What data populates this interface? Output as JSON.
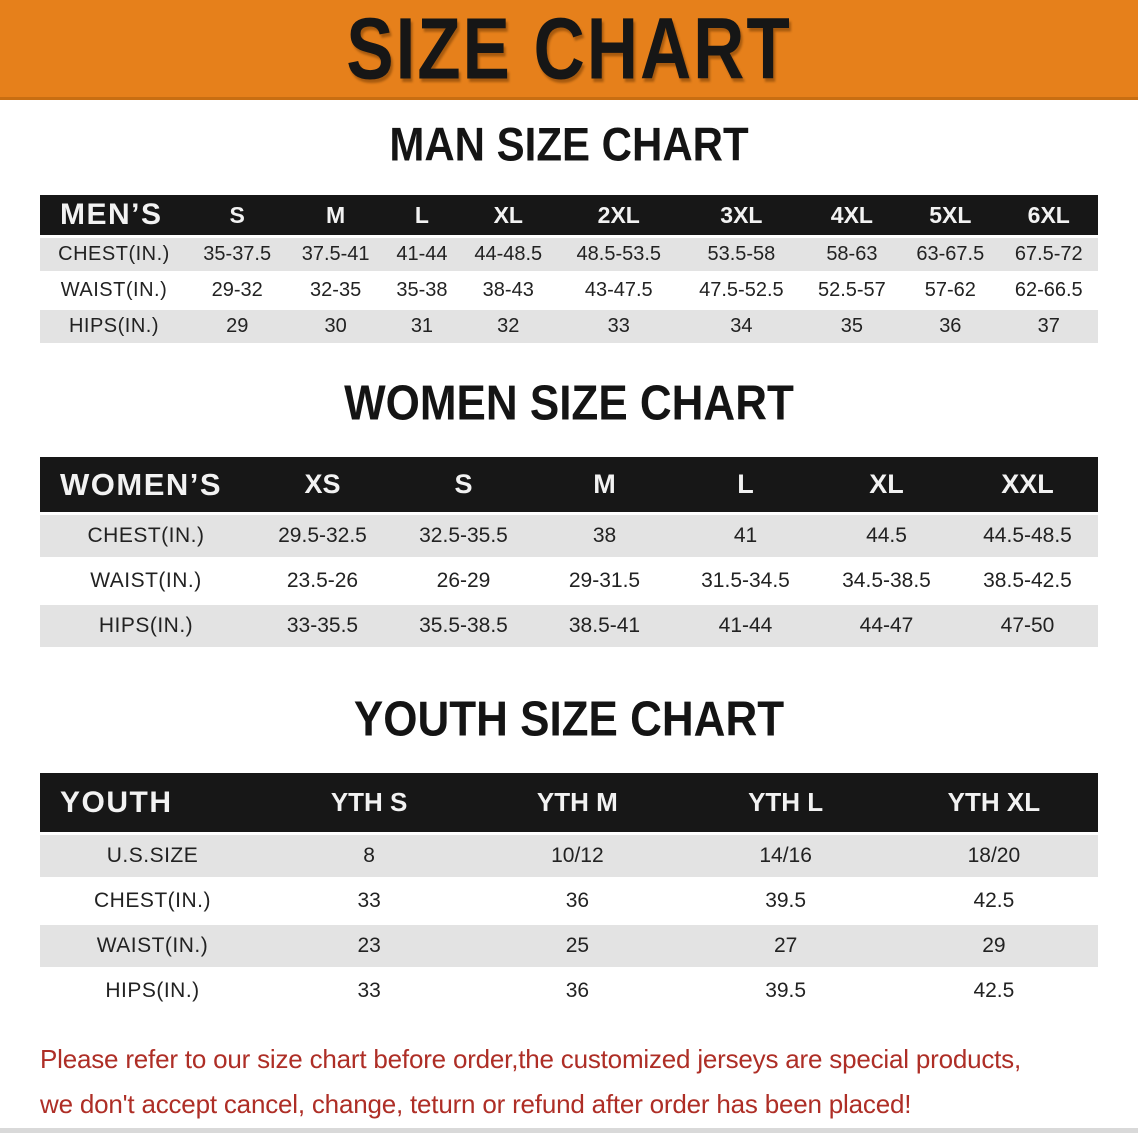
{
  "banner": {
    "title": "SIZE CHART",
    "bg_color": "#E6801B",
    "text_color": "#161616"
  },
  "tables": [
    {
      "heading": "MAN SIZE CHART",
      "group_label": "MEN’S",
      "columns": [
        "S",
        "M",
        "L",
        "XL",
        "2XL",
        "3XL",
        "4XL",
        "5XL",
        "6XL"
      ],
      "rows": [
        {
          "label": "CHEST(IN.)",
          "values": [
            "35-37.5",
            "37.5-41",
            "41-44",
            "44-48.5",
            "48.5-53.5",
            "53.5-58",
            "58-63",
            "63-67.5",
            "67.5-72"
          ]
        },
        {
          "label": "WAIST(IN.)",
          "values": [
            "29-32",
            "32-35",
            "35-38",
            "38-43",
            "43-47.5",
            "47.5-52.5",
            "52.5-57",
            "57-62",
            "62-66.5"
          ]
        },
        {
          "label": "HIPS(IN.)",
          "values": [
            "29",
            "30",
            "31",
            "32",
            "33",
            "34",
            "35",
            "36",
            "37"
          ]
        }
      ]
    },
    {
      "heading": "WOMEN SIZE CHART",
      "group_label": "WOMEN’S",
      "columns": [
        "XS",
        "S",
        "M",
        "L",
        "XL",
        "XXL"
      ],
      "rows": [
        {
          "label": "CHEST(IN.)",
          "values": [
            "29.5-32.5",
            "32.5-35.5",
            "38",
            "41",
            "44.5",
            "44.5-48.5"
          ]
        },
        {
          "label": "WAIST(IN.)",
          "values": [
            "23.5-26",
            "26-29",
            "29-31.5",
            "31.5-34.5",
            "34.5-38.5",
            "38.5-42.5"
          ]
        },
        {
          "label": "HIPS(IN.)",
          "values": [
            "33-35.5",
            "35.5-38.5",
            "38.5-41",
            "41-44",
            "44-47",
            "47-50"
          ]
        }
      ]
    },
    {
      "heading": "YOUTH SIZE CHART",
      "group_label": "YOUTH",
      "columns": [
        "YTH S",
        "YTH M",
        "YTH L",
        "YTH XL"
      ],
      "rows": [
        {
          "label": "U.S.SIZE",
          "values": [
            "8",
            "10/12",
            "14/16",
            "18/20"
          ]
        },
        {
          "label": "CHEST(IN.)",
          "values": [
            "33",
            "36",
            "39.5",
            "42.5"
          ]
        },
        {
          "label": "WAIST(IN.)",
          "values": [
            "23",
            "25",
            "27",
            "29"
          ]
        },
        {
          "label": "HIPS(IN.)",
          "values": [
            "33",
            "36",
            "39.5",
            "42.5"
          ]
        }
      ]
    }
  ],
  "table_style": {
    "header_bg": "#171717",
    "header_text": "#F2F2F2",
    "row_stripe_gray": "#E3E3E3",
    "row_white": "#FFFFFF"
  },
  "disclaimer": {
    "line1": "Please refer to our size chart before order,the customized jerseys are special products,",
    "line2": "we don't accept cancel, change, teturn or refund after order has been placed!",
    "color": "#AE2E26"
  }
}
